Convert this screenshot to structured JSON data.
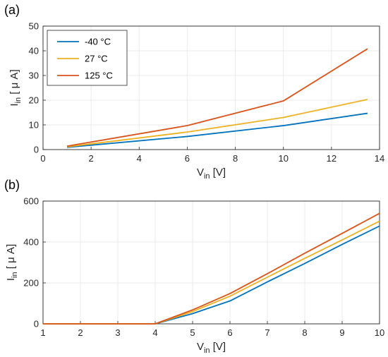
{
  "colors": {
    "series": [
      "#0072BD",
      "#EDB120",
      "#D95319"
    ],
    "grid": "#ebebeb",
    "axis": "#262626"
  },
  "chart_data": [
    {
      "type": "line",
      "panel_label": "(a)",
      "xlabel_main": "V",
      "xlabel_sub": "in",
      "xlabel_unit": " [V]",
      "ylabel_main": "I",
      "ylabel_sub": "in",
      "ylabel_unit": " [ μ A]",
      "xlim": [
        0,
        14
      ],
      "ylim": [
        0,
        50
      ],
      "xticks": [
        "0",
        "2",
        "4",
        "6",
        "8",
        "10",
        "12",
        "14"
      ],
      "yticks": [
        "0",
        "10",
        "20",
        "30",
        "40",
        "50"
      ],
      "grid": true,
      "legend_position": "top-left",
      "x": [
        1,
        6,
        10,
        13.5
      ],
      "series": [
        {
          "name": "-40 °C",
          "values": [
            0.9,
            5.3,
            9.7,
            14.7
          ]
        },
        {
          "name": "27 °C",
          "values": [
            1.1,
            7.1,
            13.0,
            20.3
          ]
        },
        {
          "name": "125 °C",
          "values": [
            1.4,
            9.7,
            19.7,
            40.8
          ]
        }
      ]
    },
    {
      "type": "line",
      "panel_label": "(b)",
      "xlabel_main": "V",
      "xlabel_sub": "in",
      "xlabel_unit": " [V]",
      "ylabel_main": "I",
      "ylabel_sub": "in",
      "ylabel_unit": " [ μ A]",
      "xlim": [
        1,
        10
      ],
      "ylim": [
        0,
        600
      ],
      "xticks": [
        "1",
        "2",
        "3",
        "4",
        "5",
        "6",
        "7",
        "8",
        "9",
        "10"
      ],
      "yticks": [
        "0",
        "200",
        "400",
        "600"
      ],
      "grid": true,
      "x": [
        1,
        2,
        3,
        4,
        5,
        6,
        7,
        8,
        9,
        10
      ],
      "series": [
        {
          "name": "-40 °C",
          "values": [
            0,
            0,
            0,
            0,
            50,
            112,
            205,
            295,
            388,
            478
          ]
        },
        {
          "name": "27 °C",
          "values": [
            0,
            0,
            0,
            0,
            60,
            135,
            228,
            320,
            410,
            502
          ]
        },
        {
          "name": "125 °C",
          "values": [
            0,
            0,
            0,
            0,
            68,
            148,
            245,
            345,
            442,
            540
          ]
        }
      ]
    }
  ]
}
